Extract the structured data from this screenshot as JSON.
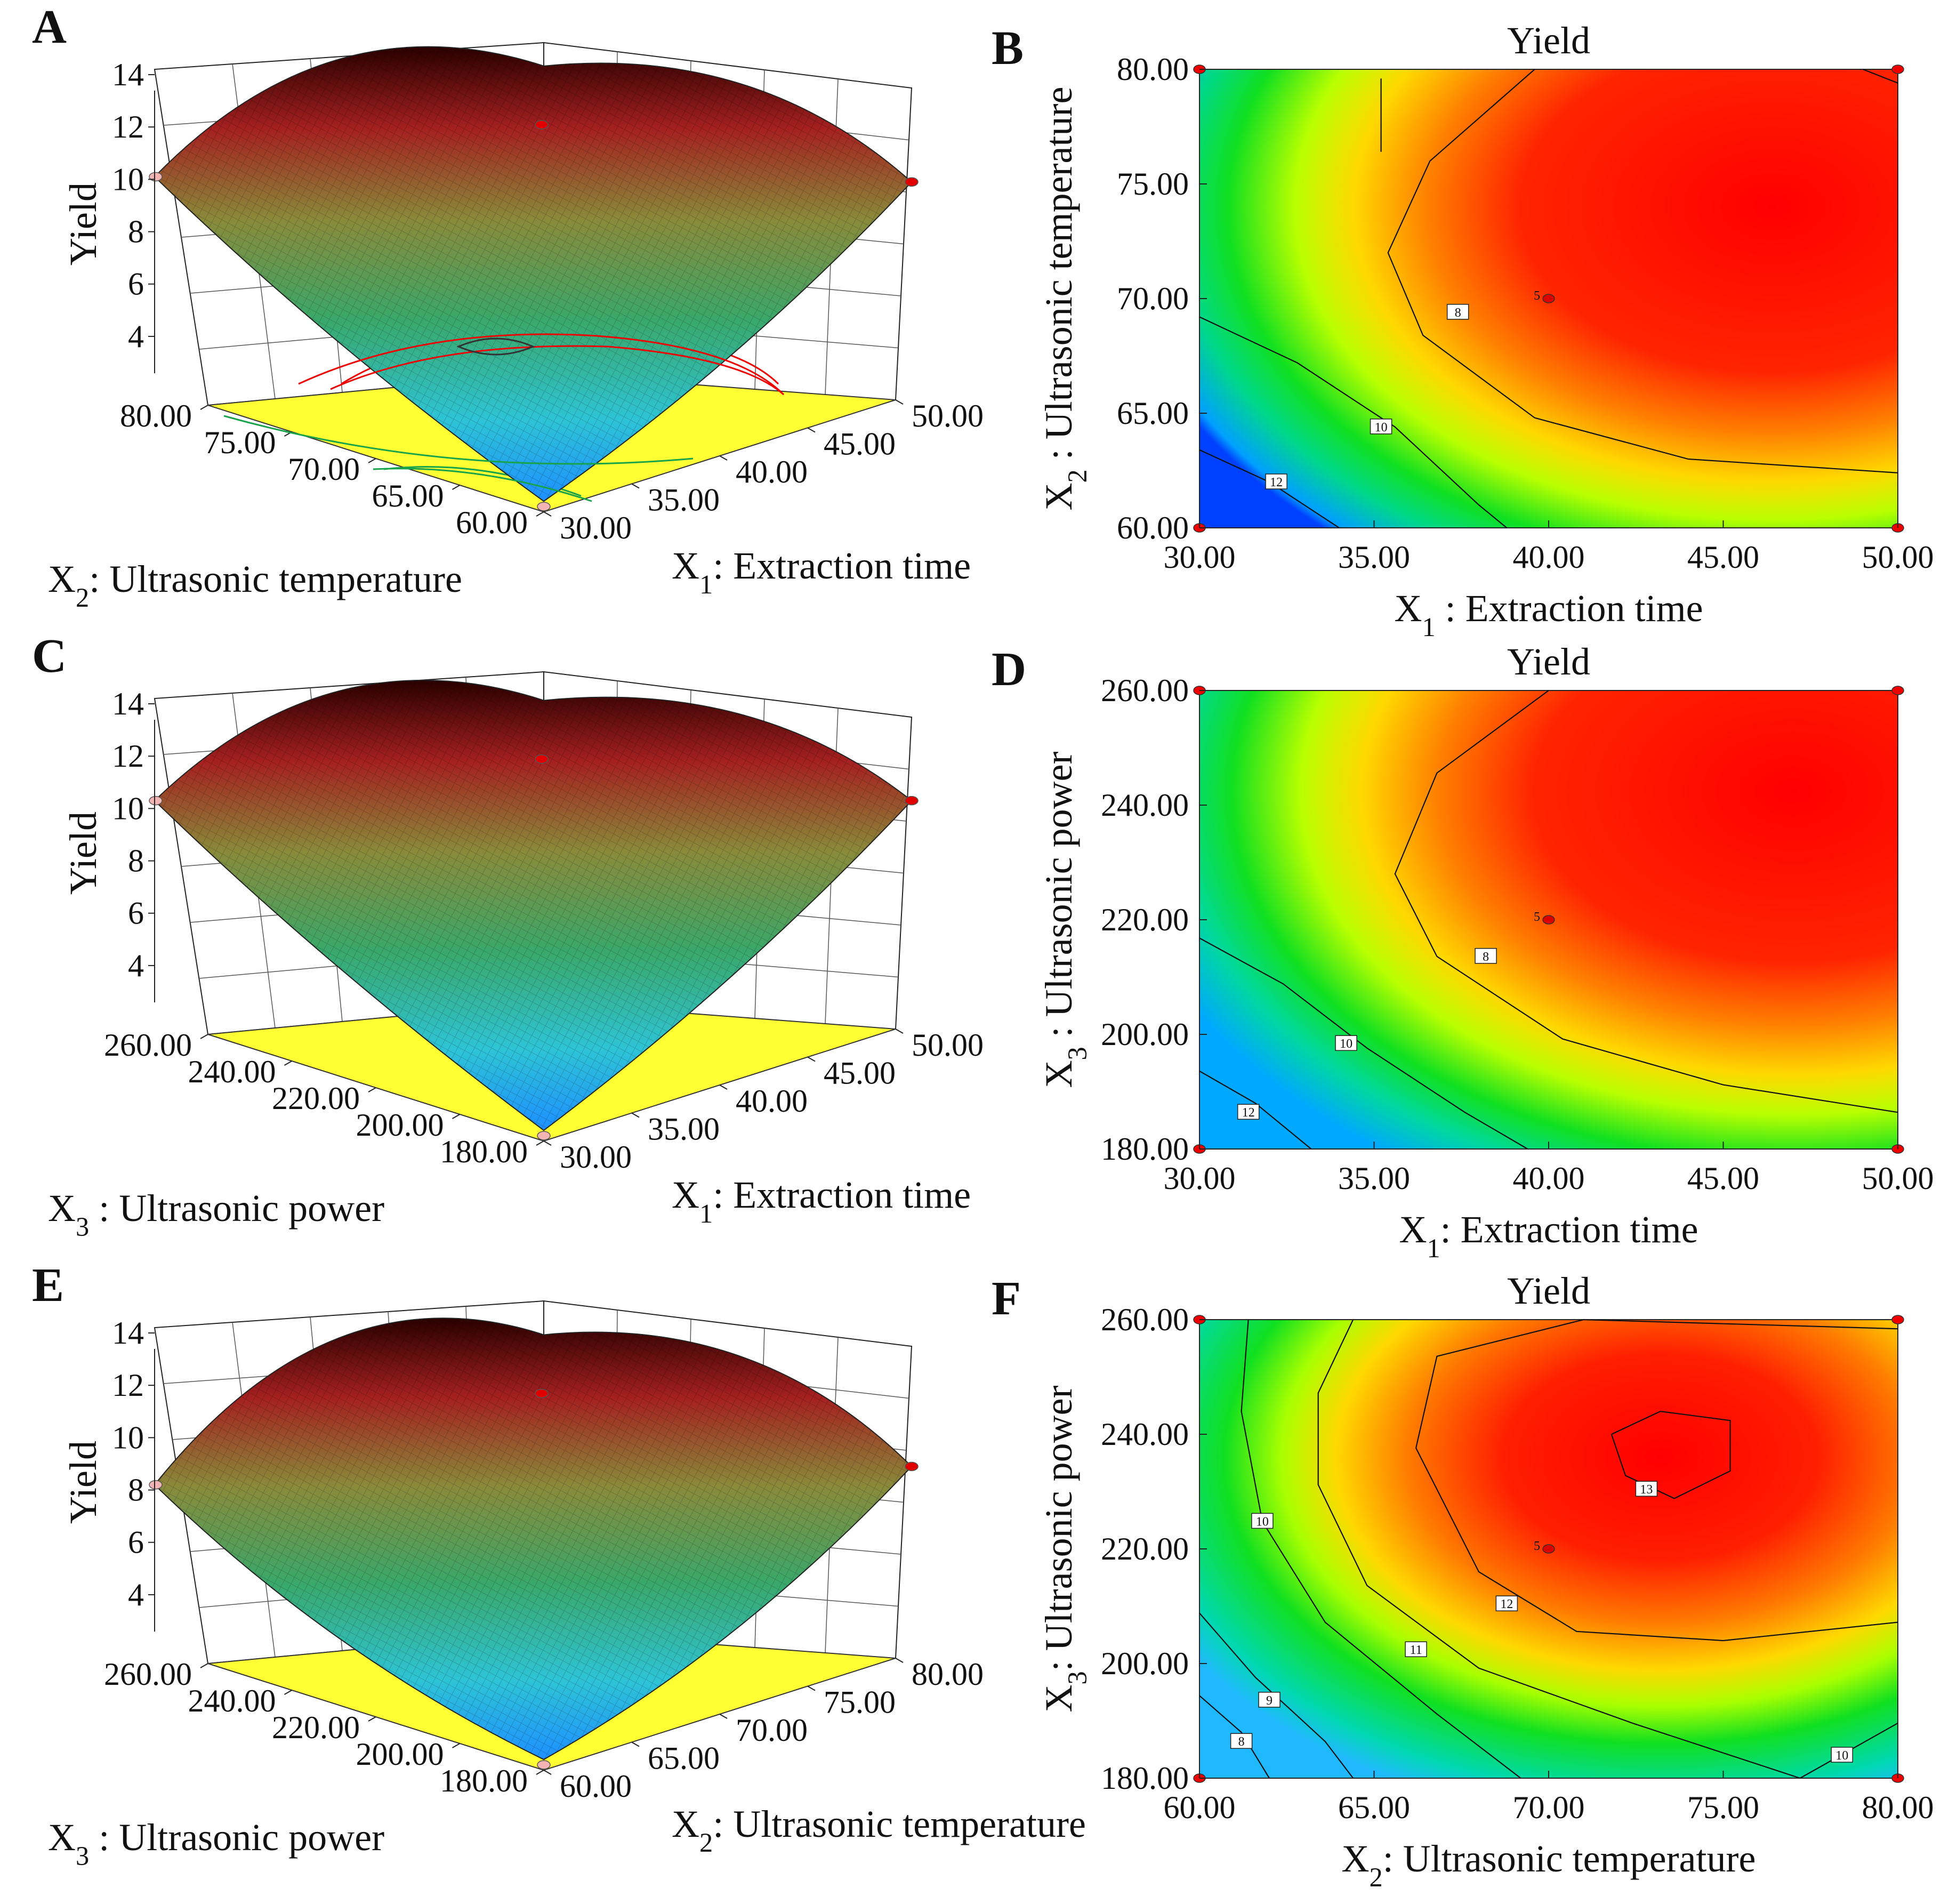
{
  "figure": {
    "colors": {
      "surface_low": "#2aa8e8",
      "surface_mid": "#3cb371",
      "surface_high": "#b01010",
      "floor": "#ffff33",
      "contour_red": "#ee0000",
      "design_point": "#e00000"
    }
  },
  "chart_data": [
    {
      "panel": "A",
      "type": "surface3d",
      "zlabel": "Yield",
      "zticks": [
        "4",
        "6",
        "8",
        "10",
        "12",
        "14"
      ],
      "xlabel_sub": "1",
      "xlabel_pre": "X",
      "xlabel_rest": ": Extraction time",
      "xticks": [
        "30.00",
        "35.00",
        "40.00",
        "45.00",
        "50.00"
      ],
      "ylabel_pre": "X",
      "ylabel_sub": "2",
      "ylabel_rest": ": Ultrasonic temperature",
      "yticks": [
        "60.00",
        "65.00",
        "70.00",
        "75.00",
        "80.00"
      ],
      "z_values": {
        "min": 2.8,
        "max": 13.3,
        "peak": 12.7,
        "left": 10.1,
        "right": 9.9
      }
    },
    {
      "panel": "B",
      "type": "contour",
      "title": "Yield",
      "xlabel_pre": "X",
      "xlabel_sub": "1",
      "xlabel_rest": " : Extraction time",
      "ylabel_pre": "X",
      "ylabel_sub": "2",
      "ylabel_rest": " : Ultrasonic temperature",
      "xticks": [
        "30.00",
        "35.00",
        "40.00",
        "45.00",
        "50.00"
      ],
      "yticks": [
        "60.00",
        "65.00",
        "70.00",
        "75.00",
        "80.00"
      ],
      "xlim": [
        30,
        50
      ],
      "ylim": [
        60,
        80
      ],
      "contour_labels": [
        "8",
        "10",
        "12"
      ],
      "center_label": "5",
      "center_point": [
        40,
        70
      ]
    },
    {
      "panel": "C",
      "type": "surface3d",
      "zlabel": "Yield",
      "zticks": [
        "4",
        "6",
        "8",
        "10",
        "12",
        "14"
      ],
      "xlabel_pre": "X",
      "xlabel_sub": "1",
      "xlabel_rest": ": Extraction time",
      "xticks": [
        "30.00",
        "35.00",
        "40.00",
        "45.00",
        "50.00"
      ],
      "ylabel_pre": "X",
      "ylabel_sub": "3",
      "ylabel_rest": " : Ultrasonic power",
      "yticks": [
        "180.00",
        "200.00",
        "220.00",
        "240.00",
        "260.00"
      ],
      "z_values": {
        "min": 2.5,
        "max": 13.4,
        "peak": 12.5,
        "left": 10.3,
        "right": 10.3
      }
    },
    {
      "panel": "D",
      "type": "contour",
      "title": "Yield",
      "xlabel_pre": "X",
      "xlabel_sub": "1",
      "xlabel_rest": ": Extraction time",
      "ylabel_pre": "X",
      "ylabel_sub": "3",
      "ylabel_rest": " : Ultrasonic power",
      "xticks": [
        "30.00",
        "35.00",
        "40.00",
        "45.00",
        "50.00"
      ],
      "yticks": [
        "180.00",
        "200.00",
        "220.00",
        "240.00",
        "260.00"
      ],
      "xlim": [
        30,
        50
      ],
      "ylim": [
        180,
        260
      ],
      "contour_labels": [
        "8",
        "10",
        "12"
      ],
      "center_label": "5",
      "center_point": [
        40,
        220
      ]
    },
    {
      "panel": "E",
      "type": "surface3d",
      "zlabel": "Yield",
      "zticks": [
        "4",
        "6",
        "8",
        "10",
        "12",
        "14"
      ],
      "xlabel_pre": "X",
      "xlabel_sub": "2",
      "xlabel_rest": ": Ultrasonic temperature",
      "xticks": [
        "60.00",
        "65.00",
        "70.00",
        "75.00",
        "80.00"
      ],
      "ylabel_pre": "X",
      "ylabel_sub": "3",
      "ylabel_rest": " : Ultrasonic power",
      "yticks": [
        "180.00",
        "200.00",
        "220.00",
        "240.00",
        "260.00"
      ],
      "z_values": {
        "min": 2.6,
        "max": 13.5,
        "peak": 12.3,
        "left": 8.2,
        "right": 8.9
      }
    },
    {
      "panel": "F",
      "type": "contour",
      "title": "Yield",
      "xlabel_pre": "X",
      "xlabel_sub": "2",
      "xlabel_rest": ": Ultrasonic temperature",
      "ylabel_pre": "X",
      "ylabel_sub": "3",
      "ylabel_rest": ": Ultrasonic power",
      "xticks": [
        "60.00",
        "65.00",
        "70.00",
        "75.00",
        "80.00"
      ],
      "yticks": [
        "180.00",
        "200.00",
        "220.00",
        "240.00",
        "260.00"
      ],
      "xlim": [
        60,
        80
      ],
      "ylim": [
        180,
        260
      ],
      "contour_labels": [
        "8",
        "9",
        "10",
        "11",
        "12",
        "13",
        "10"
      ],
      "center_label": "5",
      "center_point": [
        70,
        220
      ]
    }
  ]
}
